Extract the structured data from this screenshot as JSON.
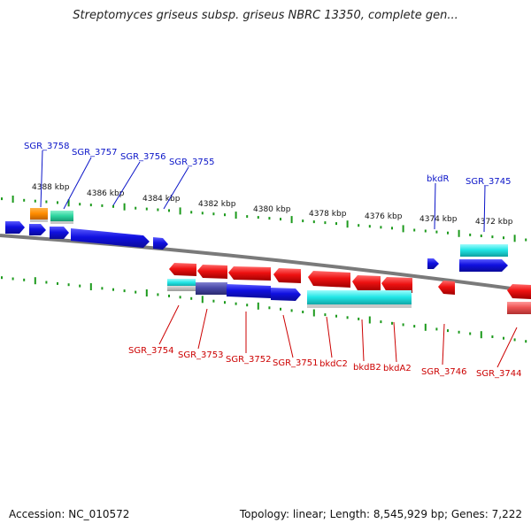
{
  "title": "Streptomyces griseus subsp. griseus NBRC 13350, complete gen...",
  "footer": {
    "accession": "Accession: NC_010572",
    "summary": "Topology: linear; Length: 8,545,929 bp; Genes: 7,222"
  },
  "colors": {
    "forward_label": "#0a14c8",
    "reverse_label": "#cc0000",
    "backbone": "#7a7a7a",
    "tick": "#1c9a1c",
    "blue_gene": "#1010e0",
    "red_gene": "#ee1111",
    "cyan_gene": "#22e6e6",
    "orange_gene": "#ff8c00",
    "teal_gene": "#2ed6a0",
    "slate_gene": "#4a4aa8"
  },
  "scale_labels": [
    "4388 kbp",
    "4386 kbp",
    "4384 kbp",
    "4382 kbp",
    "4380 kbp",
    "4378 kbp",
    "4376 kbp",
    "4374 kbp",
    "4372 kbp"
  ],
  "forward_genes": [
    {
      "label": "SGR_3758"
    },
    {
      "label": "SGR_3757"
    },
    {
      "label": "SGR_3756"
    },
    {
      "label": "SGR_3755"
    },
    {
      "label": "bkdR"
    },
    {
      "label": "SGR_3745"
    }
  ],
  "reverse_genes": [
    {
      "label": "SGR_3754"
    },
    {
      "label": "SGR_3753"
    },
    {
      "label": "SGR_3752"
    },
    {
      "label": "SGR_3751"
    },
    {
      "label": "bkdC2"
    },
    {
      "label": "bkdB2"
    },
    {
      "label": "bkdA2"
    },
    {
      "label": "SGR_3746"
    },
    {
      "label": "SGR_3744"
    }
  ]
}
